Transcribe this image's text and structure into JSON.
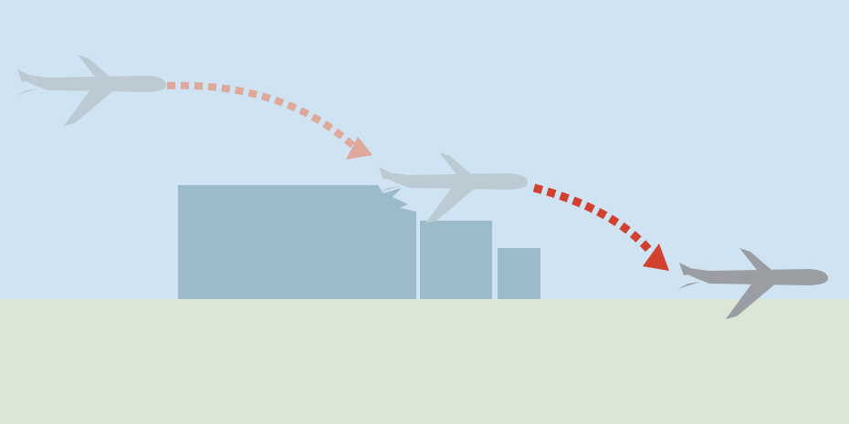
{
  "colors": {
    "sky": "#cfe3f3",
    "ground": "#dbe6d7",
    "building": "#9bbbcb",
    "plane_faded": "#bccbd3",
    "plane_final": "#9a9ea2",
    "arrow_faded": "#dea99b",
    "arrow_strong": "#d2402f"
  },
  "icons": {
    "plane": "airplane-icon",
    "arrow": "dashed-arrow-icon"
  },
  "scene": {
    "plane_count": 3,
    "building_count": 3,
    "arrow_count": 2
  }
}
